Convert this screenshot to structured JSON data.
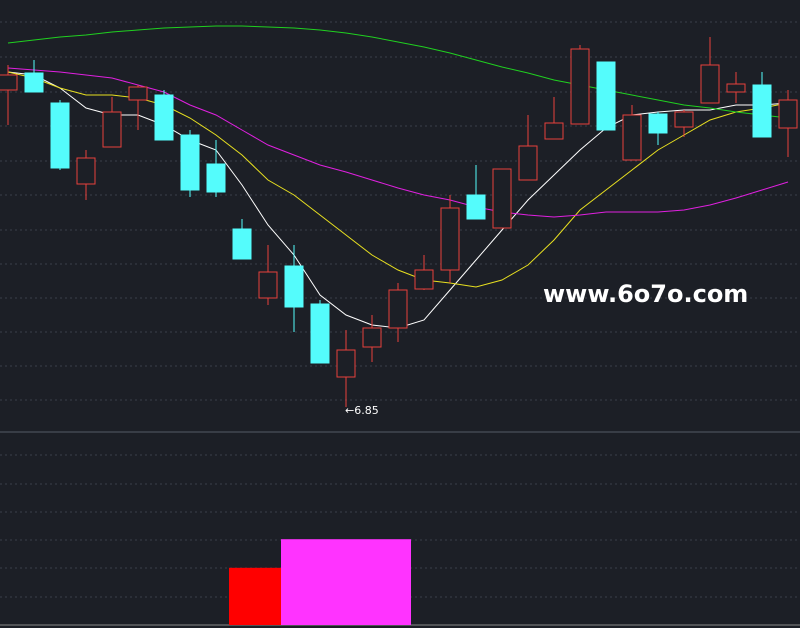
{
  "chart_data": {
    "type": "candlestick",
    "ylim": [
      6.62,
      10.92
    ],
    "up_color": "#e8403c",
    "down_color": "#54fcfc",
    "open": [
      10.02,
      10.19,
      9.89,
      9.08,
      9.45,
      9.92,
      9.97,
      9.57,
      9.28,
      8.63,
      7.94,
      8.26,
      7.88,
      7.15,
      7.45,
      7.64,
      8.03,
      8.22,
      8.97,
      8.64,
      9.12,
      9.53,
      9.68,
      10.3,
      9.32,
      9.78,
      9.65,
      9.89,
      10.0,
      10.07,
      9.64
    ],
    "high": [
      10.27,
      10.32,
      9.92,
      9.42,
      9.95,
      10.07,
      10.02,
      9.62,
      9.52,
      8.73,
      8.47,
      8.47,
      7.92,
      7.62,
      7.77,
      8.09,
      8.37,
      8.97,
      9.27,
      9.23,
      9.77,
      9.95,
      10.47,
      10.3,
      9.87,
      9.8,
      9.82,
      10.55,
      10.2,
      10.2,
      10.02
    ],
    "low": [
      9.67,
      10.0,
      9.22,
      8.92,
      9.45,
      9.62,
      9.52,
      8.95,
      8.95,
      8.33,
      7.87,
      7.6,
      7.29,
      6.85,
      7.3,
      7.5,
      8.02,
      8.09,
      8.73,
      8.64,
      9.12,
      9.53,
      9.68,
      9.62,
      9.32,
      9.47,
      9.55,
      9.89,
      9.89,
      9.55,
      9.35
    ],
    "close": [
      10.17,
      10.0,
      9.24,
      9.34,
      9.8,
      10.05,
      9.52,
      9.02,
      9.0,
      8.33,
      8.2,
      7.85,
      7.29,
      7.42,
      7.64,
      8.02,
      8.22,
      8.84,
      8.73,
      9.23,
      9.46,
      9.69,
      10.43,
      9.62,
      9.77,
      9.59,
      9.8,
      10.27,
      10.08,
      9.55,
      9.92
    ],
    "lines": [
      {
        "color": "#ffffff",
        "values": [
          10.2,
          10.17,
          10.04,
          9.84,
          9.77,
          9.77,
          9.67,
          9.52,
          9.42,
          9.07,
          8.67,
          8.37,
          7.97,
          7.77,
          7.67,
          7.64,
          7.72,
          8.02,
          8.32,
          8.62,
          8.92,
          9.17,
          9.42,
          9.64,
          9.77,
          9.8,
          9.82,
          9.82,
          9.87,
          9.87,
          9.89
        ]
      },
      {
        "color": "#e8e020",
        "values": [
          10.2,
          10.14,
          10.04,
          9.97,
          9.97,
          9.94,
          9.87,
          9.74,
          9.57,
          9.37,
          9.12,
          8.97,
          8.77,
          8.57,
          8.37,
          8.22,
          8.12,
          8.09,
          8.05,
          8.12,
          8.27,
          8.52,
          8.82,
          9.02,
          9.22,
          9.42,
          9.57,
          9.72,
          9.8,
          9.84,
          9.89
        ]
      },
      {
        "color": "#e020e0",
        "values": [
          10.24,
          10.22,
          10.2,
          10.17,
          10.14,
          10.07,
          10.0,
          9.87,
          9.77,
          9.62,
          9.47,
          9.37,
          9.27,
          9.2,
          9.12,
          9.04,
          8.97,
          8.92,
          8.85,
          8.8,
          8.77,
          8.75,
          8.77,
          8.8,
          8.8,
          8.8,
          8.82,
          8.87,
          8.94,
          9.02,
          9.1
        ]
      },
      {
        "color": "#20d020",
        "values": [
          10.49,
          10.52,
          10.55,
          10.57,
          10.6,
          10.62,
          10.64,
          10.65,
          10.66,
          10.66,
          10.65,
          10.64,
          10.62,
          10.59,
          10.55,
          10.5,
          10.45,
          10.39,
          10.32,
          10.25,
          10.19,
          10.12,
          10.07,
          10.02,
          9.97,
          9.92,
          9.87,
          9.84,
          9.8,
          9.77,
          9.74
        ]
      }
    ],
    "indicator": {
      "ylim": [
        0,
        5
      ],
      "series": [
        {
          "color": "#ff0000",
          "values": [
            0,
            0,
            0,
            0,
            0,
            0,
            0,
            0,
            0,
            2,
            2,
            2,
            2,
            2,
            2,
            2,
            0,
            0,
            0,
            0,
            0,
            0,
            0,
            0,
            0,
            0,
            0,
            0,
            0,
            0,
            0
          ]
        },
        {
          "color": "#ff33ff",
          "values": [
            0,
            0,
            0,
            0,
            0,
            0,
            0,
            0,
            0,
            0,
            0,
            3,
            3,
            3,
            3,
            3,
            0,
            0,
            0,
            0,
            0,
            0,
            0,
            0,
            0,
            0,
            0,
            0,
            0,
            0,
            0
          ]
        }
      ]
    },
    "annotation": "←6.85",
    "watermark": "www.6o7o.com"
  }
}
